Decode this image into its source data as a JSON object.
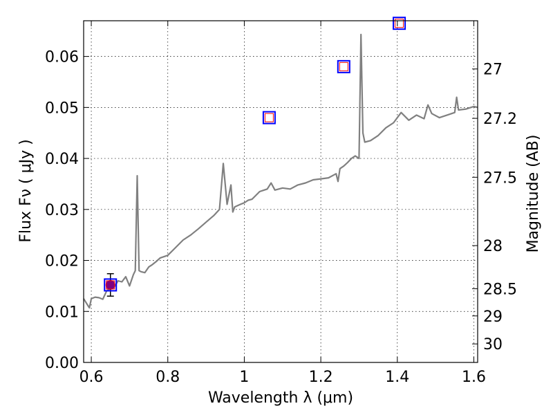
{
  "chart_data": {
    "type": "line",
    "xlabel": "Wavelength  λ (μm)",
    "ylabel": "Flux  Fν  ( μJy )",
    "y2label": "Magnitude (AB)",
    "xlim": [
      0.58,
      1.61
    ],
    "ylim": [
      0.0,
      0.067
    ],
    "grid": true,
    "x_ticks": [
      0.6,
      0.8,
      1.0,
      1.2,
      1.4,
      1.6
    ],
    "x_tick_labels": [
      "0.6",
      "0.8",
      "1",
      "1.2",
      "1.4",
      "1.6"
    ],
    "y_ticks": [
      0.0,
      0.01,
      0.02,
      0.03,
      0.04,
      0.05,
      0.06
    ],
    "y_tick_labels": [
      "0.00",
      "0.01",
      "0.02",
      "0.03",
      "0.04",
      "0.05",
      "0.06"
    ],
    "mag_ticks": [
      27,
      27.2,
      27.5,
      28,
      28.5,
      29,
      30
    ],
    "mag_tick_labels": [
      "27",
      "27.2",
      "27.5",
      "28",
      "28.5",
      "29",
      "30"
    ],
    "series": [
      {
        "kind": "model_spectrum",
        "color": "#808080",
        "x": [
          0.58,
          0.595,
          0.6,
          0.61,
          0.62,
          0.63,
          0.64,
          0.65,
          0.66,
          0.67,
          0.68,
          0.69,
          0.7,
          0.71,
          0.715,
          0.72,
          0.725,
          0.73,
          0.74,
          0.75,
          0.76,
          0.77,
          0.78,
          0.8,
          0.82,
          0.84,
          0.86,
          0.88,
          0.9,
          0.92,
          0.935,
          0.945,
          0.955,
          0.965,
          0.97,
          0.975,
          0.99,
          1.0,
          1.01,
          1.02,
          1.04,
          1.06,
          1.07,
          1.08,
          1.1,
          1.12,
          1.14,
          1.16,
          1.18,
          1.2,
          1.22,
          1.24,
          1.245,
          1.25,
          1.26,
          1.27,
          1.28,
          1.29,
          1.3,
          1.305,
          1.31,
          1.315,
          1.33,
          1.35,
          1.37,
          1.39,
          1.41,
          1.43,
          1.45,
          1.47,
          1.48,
          1.49,
          1.51,
          1.53,
          1.55,
          1.555,
          1.56,
          1.58,
          1.6,
          1.61
        ],
        "y": [
          0.0125,
          0.0107,
          0.0125,
          0.0128,
          0.0127,
          0.0124,
          0.014,
          0.0145,
          0.0148,
          0.016,
          0.0158,
          0.0168,
          0.015,
          0.0172,
          0.018,
          0.0366,
          0.018,
          0.0178,
          0.0176,
          0.0187,
          0.0192,
          0.0198,
          0.0205,
          0.021,
          0.0225,
          0.024,
          0.025,
          0.0262,
          0.0275,
          0.0288,
          0.03,
          0.039,
          0.031,
          0.0348,
          0.0295,
          0.0305,
          0.031,
          0.0313,
          0.0318,
          0.032,
          0.0335,
          0.034,
          0.0352,
          0.0338,
          0.0342,
          0.034,
          0.0348,
          0.0352,
          0.0358,
          0.036,
          0.0362,
          0.037,
          0.0355,
          0.038,
          0.0385,
          0.0392,
          0.04,
          0.0405,
          0.04,
          0.0643,
          0.045,
          0.0432,
          0.0435,
          0.0445,
          0.046,
          0.047,
          0.049,
          0.0475,
          0.0485,
          0.0478,
          0.0505,
          0.0488,
          0.048,
          0.0485,
          0.049,
          0.052,
          0.0495,
          0.0497,
          0.0502,
          0.05
        ]
      },
      {
        "kind": "observed_point",
        "color": "#800080",
        "x": [
          0.65
        ],
        "y": [
          0.0152
        ],
        "yerr": [
          0.0022
        ]
      },
      {
        "kind": "model_photometry",
        "color": "#ff0000",
        "edge_color": "#0000ff",
        "x": [
          0.65,
          1.065,
          1.26,
          1.405
        ],
        "y": [
          0.0152,
          0.048,
          0.058,
          0.0665
        ]
      }
    ]
  }
}
